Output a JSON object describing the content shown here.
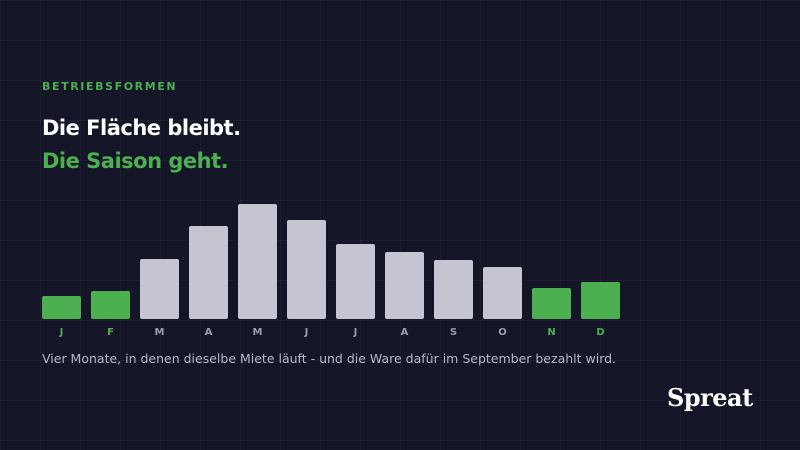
{
  "header": {
    "kicker": "BETRIEBSFORMEN",
    "title_line1": "Die Fläche bleibt.",
    "title_line2": "Die Saison geht."
  },
  "chart_data": {
    "type": "bar",
    "categories": [
      "J",
      "F",
      "M",
      "A",
      "M",
      "J",
      "J",
      "A",
      "S",
      "O",
      "N",
      "D"
    ],
    "values": [
      23,
      28,
      60,
      93,
      115,
      99,
      75,
      67,
      59,
      52,
      31,
      37
    ],
    "colors": [
      "#4caf50",
      "#4caf50",
      "#c4c5d0",
      "#c4c5d0",
      "#c4c5d0",
      "#c4c5d0",
      "#c4c5d0",
      "#c4c5d0",
      "#c4c5d0",
      "#c4c5d0",
      "#4caf50",
      "#4caf50"
    ]
  },
  "caption": "Vier Monate, in denen dieselbe Miete läuft - und die Ware dafür im September bezahlt wird.",
  "logo": "Spreat"
}
